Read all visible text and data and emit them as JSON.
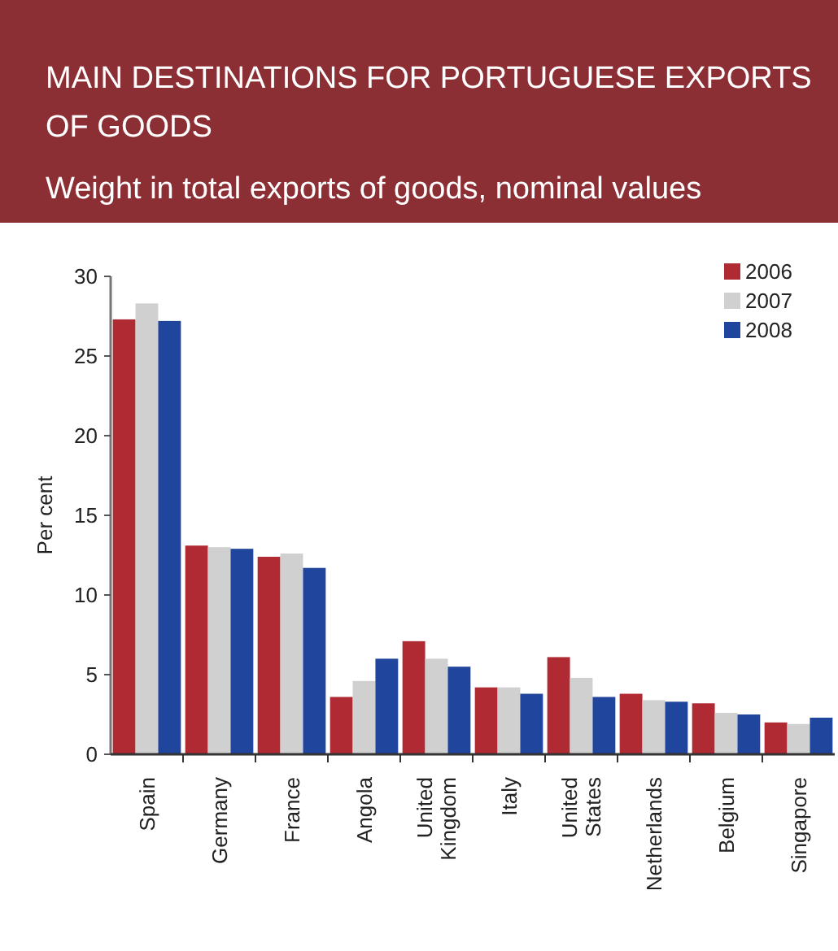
{
  "chart_data": {
    "type": "bar",
    "title": "MAIN DESTINATIONS FOR PORTUGUESE EXPORTS OF GOODS",
    "subtitle": "Weight in total exports of goods, nominal values",
    "ylabel": "Per cent",
    "categories": [
      "Spain",
      "Germany",
      "France",
      "Angola",
      "United\nKingdom",
      "Italy",
      "United\nStates",
      "Netherlands",
      "Belgium",
      "Singapore"
    ],
    "series": [
      {
        "name": "2006",
        "color": "#b02a33",
        "values": [
          27.3,
          13.1,
          12.4,
          3.6,
          7.1,
          4.2,
          6.1,
          3.8,
          3.2,
          2.0
        ]
      },
      {
        "name": "2007",
        "color": "#d0d0d0",
        "values": [
          28.3,
          13.0,
          12.6,
          4.6,
          6.0,
          4.2,
          4.8,
          3.4,
          2.6,
          1.9
        ]
      },
      {
        "name": "2008",
        "color": "#1f459c",
        "values": [
          27.2,
          12.9,
          11.7,
          6.0,
          5.5,
          3.8,
          3.6,
          3.3,
          2.5,
          2.3
        ]
      }
    ],
    "ylim": [
      0,
      30
    ],
    "yticks": [
      0,
      5,
      10,
      15,
      20,
      25,
      30
    ],
    "grid": false,
    "legend": "top right"
  }
}
